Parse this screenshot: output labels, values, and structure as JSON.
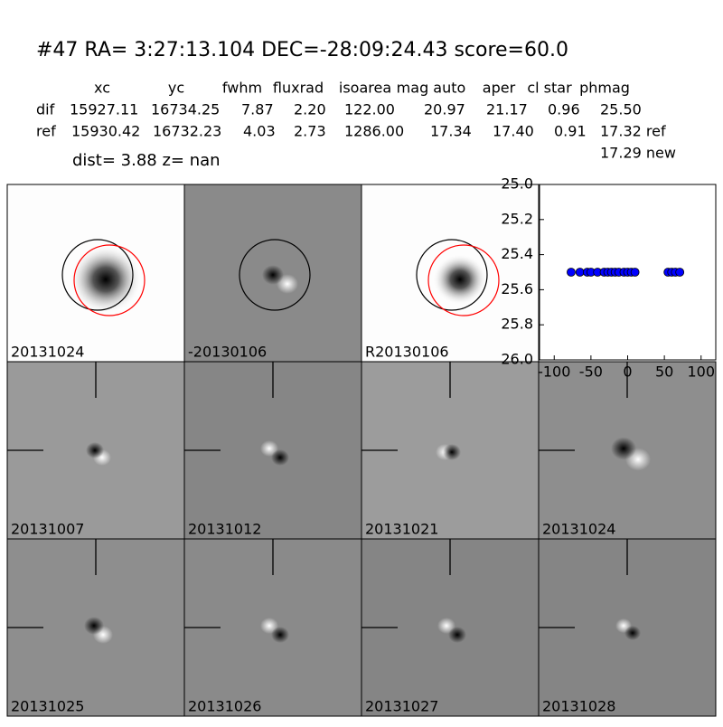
{
  "header": {
    "title": "#47   RA= 3:27:13.104 DEC=-28:09:24.43      score=60.0",
    "dist": "dist=  3.88      z=   nan"
  },
  "table": {
    "columns": [
      "xc",
      "yc",
      "fwhm",
      "fluxrad",
      "isoarea",
      "mag auto",
      "aper",
      "cl star",
      "phmag"
    ],
    "rows": [
      [
        "dif",
        "15927.11",
        "16734.25",
        "7.87",
        "2.20",
        "122.00",
        "20.97",
        "21.17",
        "0.96",
        "25.50"
      ],
      [
        "ref",
        "15930.42",
        "16732.23",
        "4.03",
        "2.73",
        "1286.00",
        "17.34",
        "17.40",
        "0.91",
        "17.32 ref"
      ]
    ],
    "extra": "17.29 new"
  },
  "panels": [
    {
      "label": "20131024"
    },
    {
      "label": "-20130106"
    },
    {
      "label": "R20130106"
    },
    {
      "label": "20131007"
    },
    {
      "label": "20131012"
    },
    {
      "label": "20131021"
    },
    {
      "label": "20131024",
      "color": "#ff0000"
    },
    {
      "label": "20131025"
    },
    {
      "label": "20131026"
    },
    {
      "label": "20131027"
    },
    {
      "label": "20131028"
    }
  ],
  "chart_data": {
    "type": "scatter",
    "x": [
      -77,
      -65,
      -55,
      -50,
      -41,
      -32,
      -27,
      -22,
      -17,
      -12,
      -5,
      0,
      5,
      10,
      55,
      60,
      65,
      71
    ],
    "series": [
      {
        "color": "#0000ff",
        "values": [
          25.5,
          25.5,
          25.5,
          25.5,
          25.5,
          25.5,
          25.5,
          25.5,
          25.5,
          25.5,
          25.5,
          25.5,
          25.5,
          25.5,
          25.5,
          25.5,
          25.5,
          25.5
        ]
      }
    ],
    "xlim": [
      -120,
      120
    ],
    "xticks": [
      -100,
      -50,
      0,
      50,
      100
    ],
    "ylim": [
      25.0,
      26.0
    ],
    "yticks": [
      {
        "value": 25.0,
        "label": "25.0"
      },
      25.2,
      25.4,
      25.6,
      25.8,
      {
        "value": 26.0,
        "label": "26.0"
      }
    ],
    "y_inverted": true
  }
}
